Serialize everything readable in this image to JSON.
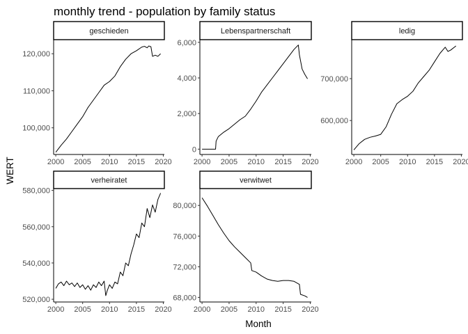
{
  "chart_data": {
    "type": "line",
    "title": "monthly trend - population by family status",
    "xlabel": "Month",
    "ylabel": "WERT",
    "grid": false,
    "line_color": "#000000",
    "panels": [
      {
        "name": "geschieden",
        "xlim": [
          1999.6,
          2020.2
        ],
        "ylim": [
          92800,
          123800
        ],
        "xticks": [
          2000,
          2005,
          2010,
          2015,
          2020
        ],
        "yticks": [
          100000,
          110000,
          120000
        ],
        "ytick_labels": [
          "100,000",
          "110,000",
          "120,000"
        ],
        "x": [
          2000,
          2001,
          2002,
          2003,
          2004,
          2005,
          2006,
          2007,
          2008,
          2009,
          2010,
          2011,
          2012,
          2013,
          2014,
          2015,
          2016,
          2016.5,
          2017,
          2017.3,
          2017.7,
          2018,
          2018.5,
          2019,
          2019.5
        ],
        "y": [
          93400,
          95300,
          97000,
          99000,
          101000,
          103000,
          105500,
          107500,
          109500,
          111500,
          112500,
          114000,
          116500,
          118500,
          120000,
          120800,
          121800,
          122000,
          121600,
          122100,
          121900,
          119300,
          119600,
          119300,
          120000
        ]
      },
      {
        "name": "Lebenspartnerschaft",
        "xlim": [
          1999.6,
          2020.2
        ],
        "ylim": [
          -300,
          6150
        ],
        "xticks": [
          2000,
          2005,
          2010,
          2015,
          2020
        ],
        "yticks": [
          0,
          2000,
          4000,
          6000
        ],
        "ytick_labels": [
          "0",
          "2,000",
          "4,000",
          "6,000"
        ],
        "x": [
          2000,
          2001,
          2002.5,
          2002.6,
          2003,
          2004,
          2005,
          2006,
          2007,
          2008,
          2009,
          2010,
          2011,
          2012,
          2013,
          2014,
          2015,
          2016,
          2017,
          2017.8,
          2018,
          2018.5,
          2019,
          2019.5
        ],
        "y": [
          0,
          0,
          0,
          450,
          700,
          950,
          1150,
          1400,
          1650,
          1850,
          2250,
          2700,
          3200,
          3600,
          4000,
          4400,
          4800,
          5200,
          5600,
          5850,
          5300,
          4500,
          4200,
          3950
        ]
      },
      {
        "name": "ledig",
        "xlim": [
          1999.6,
          2020.2
        ],
        "ylim": [
          519000,
          793000
        ],
        "xticks": [
          2000,
          2005,
          2010,
          2015,
          2020
        ],
        "yticks": [
          600000,
          700000
        ],
        "ytick_labels": [
          "600,000",
          "700,000"
        ],
        "x": [
          2000,
          2001,
          2002,
          2003,
          2004,
          2005,
          2006,
          2007,
          2008,
          2009,
          2010,
          2011,
          2012,
          2013,
          2014,
          2015,
          2016,
          2017,
          2017.5,
          2018,
          2019
        ],
        "y": [
          530000,
          545000,
          555000,
          560000,
          563000,
          567000,
          585000,
          615000,
          640000,
          650000,
          658000,
          670000,
          690000,
          705000,
          720000,
          740000,
          760000,
          775000,
          765000,
          768000,
          778000
        ]
      },
      {
        "name": "verheiratet",
        "xlim": [
          1999.6,
          2020.2
        ],
        "ylim": [
          518500,
          581000
        ],
        "xticks": [
          2000,
          2005,
          2010,
          2015,
          2020
        ],
        "yticks": [
          520000,
          540000,
          560000,
          580000
        ],
        "ytick_labels": [
          "520,000",
          "540,000",
          "560,000",
          "580,000"
        ],
        "x": [
          2000,
          2000.5,
          2001,
          2001.5,
          2002,
          2002.5,
          2003,
          2003.5,
          2004,
          2004.5,
          2005,
          2005.5,
          2006,
          2006.5,
          2007,
          2007.5,
          2008,
          2008.5,
          2009,
          2009.3,
          2009.6,
          2010,
          2010.5,
          2011,
          2011.5,
          2012,
          2012.5,
          2013,
          2013.5,
          2014,
          2014.5,
          2015,
          2015.5,
          2016,
          2016.5,
          2017,
          2017.5,
          2018,
          2018.5,
          2019,
          2019.5
        ],
        "y": [
          526000,
          528500,
          529500,
          527500,
          530000,
          528000,
          529000,
          527000,
          529000,
          526500,
          528000,
          525500,
          527500,
          525000,
          528000,
          526500,
          529500,
          527500,
          530000,
          522000,
          525000,
          528000,
          526000,
          529500,
          528500,
          535000,
          533000,
          540000,
          538500,
          545000,
          550000,
          556000,
          554000,
          562000,
          560000,
          570000,
          565000,
          572000,
          568000,
          575000,
          578500
        ]
      },
      {
        "name": "verwitwet",
        "xlim": [
          1999.6,
          2020.2
        ],
        "ylim": [
          67400,
          82200
        ],
        "xticks": [
          2000,
          2005,
          2010,
          2015,
          2020
        ],
        "yticks": [
          68000,
          72000,
          76000,
          80000
        ],
        "ytick_labels": [
          "68,000",
          "72,000",
          "76,000",
          "80,000"
        ],
        "x": [
          2000,
          2001,
          2002,
          2003,
          2004,
          2005,
          2006,
          2007,
          2008,
          2009,
          2009.2,
          2010,
          2011,
          2012,
          2013,
          2014,
          2015,
          2016,
          2017,
          2018,
          2018.2,
          2019,
          2019.5
        ],
        "y": [
          81000,
          79900,
          78700,
          77500,
          76400,
          75400,
          74600,
          73900,
          73200,
          72500,
          71500,
          71300,
          70800,
          70400,
          70200,
          70100,
          70200,
          70200,
          70100,
          69700,
          68400,
          68200,
          68000
        ]
      }
    ]
  }
}
